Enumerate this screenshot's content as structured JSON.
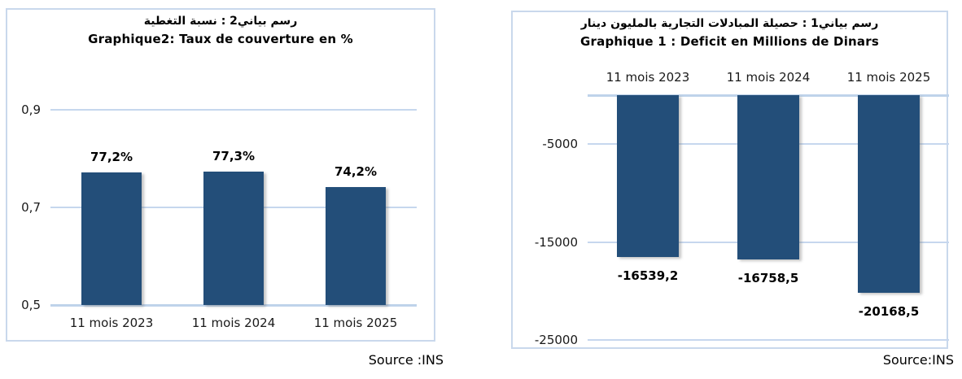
{
  "chart_data": [
    {
      "type": "bar",
      "title": "رسم بياني2 :  نسبة التغطية",
      "subtitle": "Graphique2: Taux de couverture en %",
      "categories": [
        "11 mois 2023",
        "11 mois 2024",
        "11 mois 2025"
      ],
      "values": [
        0.772,
        0.773,
        0.742
      ],
      "value_labels": [
        "77,2%",
        "77,3%",
        "74,2%"
      ],
      "yticks": [
        {
          "value": 0.9,
          "label": "0,9"
        },
        {
          "value": 0.7,
          "label": "0,7"
        },
        {
          "value": 0.5,
          "label": "0,5"
        }
      ],
      "ylim": [
        0.5,
        0.95
      ],
      "baseline_value": 0.5,
      "grid": true,
      "legend": false,
      "bar_color": "#234E79",
      "grid_color": "#c6d7ee",
      "axis_color": "#bfd3ea",
      "source": "Source :INS"
    },
    {
      "type": "bar",
      "title": "رسم بياني1 :  حصيلة المبادلات التجارية بالمليون دينار",
      "subtitle": "Graphique 1 : Deficit en Millions de Dinars",
      "categories": [
        "11 mois 2023",
        "11 mois 2024",
        "11 mois 2025"
      ],
      "values": [
        -16539.2,
        -16758.5,
        -20168.5
      ],
      "value_labels": [
        "-16539,2",
        "-16758,5",
        "-20168,5"
      ],
      "yticks": [
        {
          "value": -5000,
          "label": "-5000"
        },
        {
          "value": -15000,
          "label": "-15000"
        },
        {
          "value": -25000,
          "label": "-25000"
        }
      ],
      "ylim": [
        -25800,
        0
      ],
      "baseline_value": 0,
      "grid": true,
      "legend": false,
      "bar_color": "#234E79",
      "grid_color": "#c6d7ee",
      "axis_color": "#bfd3ea",
      "source": "Source:INS"
    }
  ]
}
